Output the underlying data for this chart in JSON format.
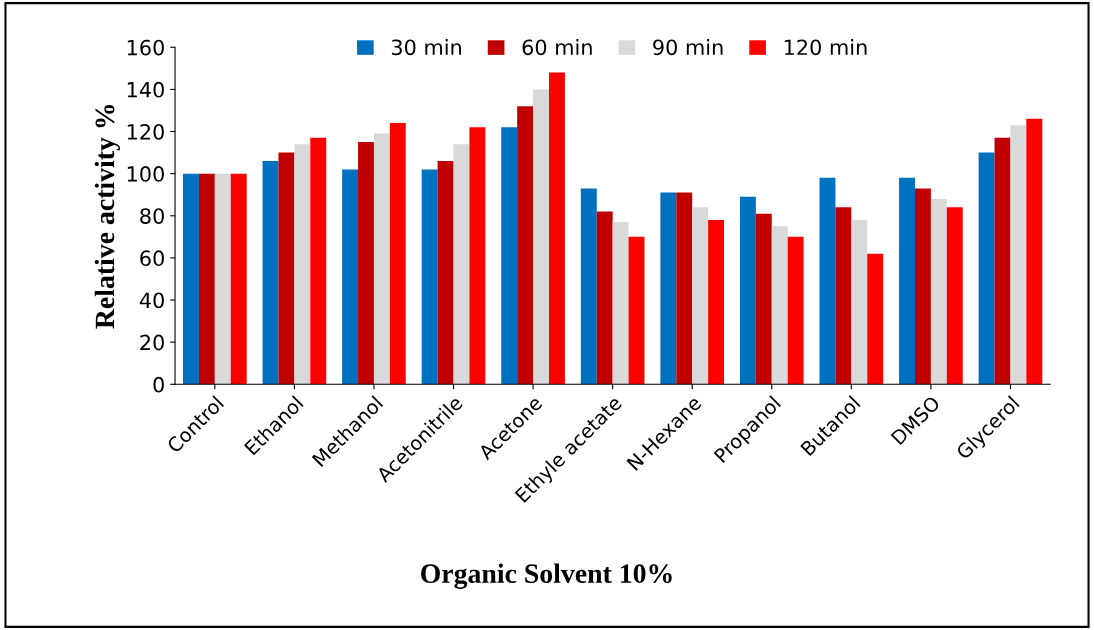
{
  "chart_data": {
    "type": "bar",
    "xlabel": "Organic Solvent 10%",
    "ylabel": "Relative activity %",
    "categories": [
      "Control",
      "Ethanol",
      "Methanol",
      "Acetonitrile",
      "Acetone",
      "Ethyle acetate",
      "N-Hexane",
      "Propanol",
      "Butanol",
      "DMSO",
      "Glycerol"
    ],
    "series": [
      {
        "name": "30 min",
        "color": "#0070c0",
        "values": [
          100,
          106,
          102,
          102,
          122,
          93,
          91,
          89,
          98,
          98,
          110
        ]
      },
      {
        "name": "60 min",
        "color": "#c00000",
        "values": [
          100,
          110,
          115,
          106,
          132,
          82,
          91,
          81,
          84,
          93,
          117
        ]
      },
      {
        "name": "90 min",
        "color": "#d9d9d9",
        "values": [
          100,
          114,
          119,
          114,
          140,
          77,
          84,
          75,
          78,
          88,
          123
        ]
      },
      {
        "name": "120 min",
        "color": "#ff0000",
        "values": [
          100,
          117,
          124,
          122,
          148,
          70,
          78,
          70,
          62,
          84,
          126
        ]
      }
    ],
    "ylim": [
      0,
      160
    ],
    "yticks": [
      0,
      20,
      40,
      60,
      80,
      100,
      120,
      140,
      160
    ],
    "grid": false,
    "legend": "top"
  }
}
